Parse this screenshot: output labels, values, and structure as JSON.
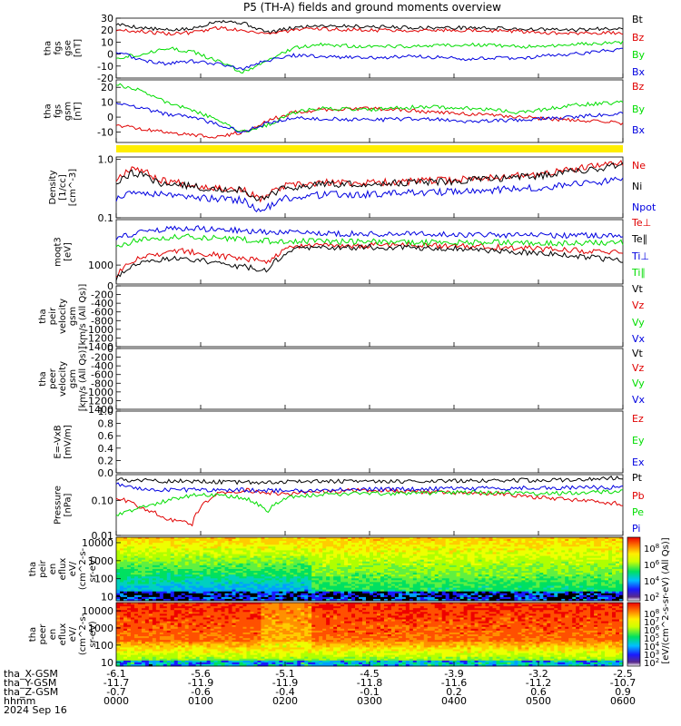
{
  "title": "P5 (TH-A) fields and ground moments overview",
  "colors": {
    "black": "#000000",
    "red": "#e00000",
    "green": "#00dd00",
    "blue": "#0000e0",
    "yellow": "#ffee00"
  },
  "chart_data": [
    {
      "type": "line",
      "panel": "fgs_gse",
      "ylabel": [
        "tha",
        "fgs",
        "gse",
        "[nT]"
      ],
      "ylim": [
        -20,
        30
      ],
      "yticks": [
        "30",
        "20",
        "10",
        "0",
        "-10",
        "-20"
      ],
      "legend": [
        "Bt",
        "Bz",
        "By",
        "Bx"
      ],
      "series": [
        {
          "name": "Bt",
          "color": "black",
          "x": [
            0,
            0.3,
            0.6,
            0.9,
            1.2,
            1.5,
            1.8,
            2.1,
            2.4,
            3,
            3.6,
            4.2,
            4.8,
            5.4,
            6
          ],
          "values": [
            25,
            22,
            20,
            21,
            28,
            26,
            18,
            22,
            24,
            23,
            22,
            22,
            21,
            20,
            22
          ]
        },
        {
          "name": "Bz",
          "color": "red",
          "x": [
            0,
            0.3,
            0.6,
            0.9,
            1.2,
            1.5,
            1.8,
            2.1,
            2.4,
            3,
            3.6,
            4.2,
            4.8,
            5.4,
            6
          ],
          "values": [
            20,
            19,
            17,
            18,
            22,
            20,
            17,
            20,
            21,
            20,
            20,
            20,
            19,
            17,
            18
          ]
        },
        {
          "name": "By",
          "color": "green",
          "x": [
            0,
            0.3,
            0.6,
            0.9,
            1.2,
            1.5,
            1.8,
            2.1,
            2.4,
            3,
            3.6,
            4.2,
            4.8,
            5.4,
            6
          ],
          "values": [
            -3,
            0,
            5,
            2,
            -6,
            -15,
            -5,
            5,
            8,
            6,
            7,
            8,
            6,
            8,
            10
          ]
        },
        {
          "name": "Bx",
          "color": "blue",
          "x": [
            0,
            0.3,
            0.6,
            0.9,
            1.2,
            1.5,
            1.8,
            2.1,
            2.4,
            3,
            3.6,
            4.2,
            4.8,
            5.4,
            6
          ],
          "values": [
            2,
            -5,
            -8,
            -6,
            -8,
            -12,
            -5,
            -1,
            -2,
            -3,
            -2,
            -4,
            -3,
            0,
            4
          ]
        }
      ]
    },
    {
      "type": "line",
      "panel": "fgs_gsm",
      "ylabel": [
        "tha",
        "fgs",
        "gsm",
        "[nT]"
      ],
      "ylim": [
        -17,
        25
      ],
      "yticks": [
        "20",
        "10",
        "0",
        "-10"
      ],
      "legend": [
        "Bz",
        "By",
        "Bx"
      ],
      "series": [
        {
          "name": "Bz",
          "color": "red",
          "x": [
            0,
            0.3,
            0.6,
            0.9,
            1.2,
            1.5,
            1.8,
            2.1,
            2.4,
            3,
            3.6,
            4.2,
            4.8,
            5.4,
            6
          ],
          "values": [
            -5,
            -8,
            -10,
            -12,
            -13,
            -10,
            -2,
            3,
            5,
            6,
            4,
            2,
            0,
            -2,
            -4
          ]
        },
        {
          "name": "By",
          "color": "green",
          "x": [
            0,
            0.3,
            0.6,
            0.9,
            1.2,
            1.5,
            1.8,
            2.1,
            2.4,
            3,
            3.6,
            4.2,
            4.8,
            5.4,
            6
          ],
          "values": [
            22,
            18,
            10,
            5,
            -2,
            -10,
            -5,
            3,
            6,
            5,
            7,
            6,
            3,
            8,
            10
          ]
        },
        {
          "name": "Bx",
          "color": "blue",
          "x": [
            0,
            0.3,
            0.6,
            0.9,
            1.2,
            1.5,
            1.8,
            2.1,
            2.4,
            3,
            3.6,
            4.2,
            4.8,
            5.4,
            6
          ],
          "values": [
            10,
            6,
            2,
            0,
            -5,
            -10,
            -4,
            0,
            -1,
            -2,
            -1,
            -3,
            -2,
            0,
            3
          ]
        }
      ]
    },
    {
      "type": "line",
      "panel": "density",
      "ylabel": [
        "Density",
        "[1/cc]",
        "[cm^-3]"
      ],
      "scale": "log",
      "ylim": [
        0.1,
        1.1
      ],
      "yticks": [
        "1.0",
        "0.1"
      ],
      "legend": [
        "Ne",
        "Ni",
        "Npot"
      ],
      "series": [
        {
          "name": "Ne",
          "color": "red",
          "x": [
            0,
            0.2,
            0.5,
            1,
            1.5,
            1.7,
            2,
            2.5,
            3,
            3.5,
            4,
            4.5,
            5,
            5.5,
            6
          ],
          "values": [
            0.45,
            0.75,
            0.45,
            0.35,
            0.3,
            0.2,
            0.35,
            0.4,
            0.4,
            0.42,
            0.45,
            0.5,
            0.55,
            0.7,
            0.9
          ]
        },
        {
          "name": "Ni",
          "color": "black",
          "x": [
            0,
            0.2,
            0.5,
            1,
            1.5,
            1.7,
            2,
            2.5,
            3,
            3.5,
            4,
            4.5,
            5,
            5.5,
            6
          ],
          "values": [
            0.4,
            0.6,
            0.4,
            0.33,
            0.3,
            0.2,
            0.32,
            0.38,
            0.38,
            0.4,
            0.42,
            0.47,
            0.52,
            0.65,
            0.8
          ]
        },
        {
          "name": "Npot",
          "color": "blue",
          "x": [
            0,
            0.2,
            0.5,
            1,
            1.5,
            1.7,
            2,
            2.5,
            3,
            3.5,
            4,
            4.5,
            5,
            5.5,
            6
          ],
          "values": [
            0.2,
            0.28,
            0.25,
            0.22,
            0.2,
            0.12,
            0.22,
            0.25,
            0.25,
            0.27,
            0.28,
            0.3,
            0.33,
            0.38,
            0.45
          ]
        }
      ]
    },
    {
      "type": "line",
      "panel": "temperature",
      "ylabel": [
        "moqt3",
        "[eV]"
      ],
      "scale": "log",
      "ylim": [
        400,
        9000
      ],
      "yticks": [
        "1000"
      ],
      "legend": [
        "Te⊥",
        "Te∥",
        "Ti⊥",
        "Ti∥"
      ],
      "series": [
        {
          "name": "Te⊥",
          "color": "red",
          "x": [
            0,
            0.3,
            0.8,
            1.3,
            1.8,
            2.1,
            2.5,
            3,
            3.5,
            4,
            4.5,
            5,
            5.5,
            6
          ],
          "values": [
            600,
            1500,
            2000,
            1500,
            1200,
            2500,
            2500,
            2600,
            2600,
            2500,
            2400,
            2200,
            2000,
            1800
          ]
        },
        {
          "name": "Te∥",
          "color": "black",
          "x": [
            0,
            0.3,
            0.8,
            1.3,
            1.8,
            2.1,
            2.5,
            3,
            3.5,
            4,
            4.5,
            5,
            5.5,
            6
          ],
          "values": [
            500,
            1200,
            1400,
            1000,
            800,
            2200,
            2300,
            2400,
            2300,
            2200,
            2000,
            1800,
            1500,
            1200
          ]
        },
        {
          "name": "Ti⊥",
          "color": "blue",
          "x": [
            0,
            0.3,
            0.8,
            1.3,
            1.8,
            2.1,
            2.5,
            3,
            3.5,
            4,
            4.5,
            5,
            5.5,
            6
          ],
          "values": [
            3500,
            5000,
            6000,
            5500,
            5000,
            4800,
            4500,
            4500,
            4500,
            4400,
            4300,
            4200,
            4200,
            4300
          ]
        },
        {
          "name": "Ti∥",
          "color": "green",
          "x": [
            0,
            0.3,
            0.8,
            1.3,
            1.8,
            2.1,
            2.5,
            3,
            3.5,
            4,
            4.5,
            5,
            5.5,
            6
          ],
          "values": [
            2500,
            3500,
            4000,
            3600,
            3200,
            3200,
            3100,
            3100,
            3000,
            3000,
            3000,
            2900,
            2900,
            3000
          ]
        }
      ]
    },
    {
      "type": "line",
      "panel": "peir_velocity",
      "ylabel": [
        "tha",
        "peir",
        "velocity",
        "gsm",
        "[km/s (All Qs)]"
      ],
      "ylim": [
        -1400,
        0
      ],
      "yticks": [
        "0",
        "-200",
        "-400",
        "-600",
        "-800",
        "-1000",
        "-1200",
        "-1400"
      ],
      "legend": [
        "Vt",
        "Vz",
        "Vy",
        "Vx"
      ],
      "series": []
    },
    {
      "type": "line",
      "panel": "peer_velocity",
      "ylabel": [
        "tha",
        "peer",
        "velocity",
        "gsm",
        "[km/s (All Qs)]"
      ],
      "ylim": [
        -1400,
        0
      ],
      "yticks": [
        "0",
        "-200",
        "-400",
        "-600",
        "-800",
        "-1000",
        "-1200",
        "-1400"
      ],
      "legend": [
        "Vt",
        "Vz",
        "Vy",
        "Vx"
      ],
      "series": []
    },
    {
      "type": "line",
      "panel": "efield",
      "ylabel": [
        "E=-VxB",
        "[mV/m]"
      ],
      "ylim": [
        0,
        1.0
      ],
      "yticks": [
        "1.0",
        "0.8",
        "0.6",
        "0.4",
        "0.2",
        "0.0"
      ],
      "legend": [
        "Ez",
        "Ey",
        "Ex"
      ],
      "series": []
    },
    {
      "type": "line",
      "panel": "pressure",
      "ylabel": [
        "Pressure",
        "[nPa]"
      ],
      "scale": "log",
      "ylim": [
        0.01,
        0.55
      ],
      "yticks": [
        "0.10",
        "0.01"
      ],
      "legend": [
        "Pt",
        "Pb",
        "Pe",
        "Pi"
      ],
      "series": [
        {
          "name": "Pt",
          "color": "black",
          "x": [
            0,
            0.5,
            1,
            1.5,
            2,
            2.5,
            3,
            3.5,
            4,
            4.5,
            5,
            5.5,
            6
          ],
          "values": [
            0.4,
            0.36,
            0.35,
            0.33,
            0.35,
            0.36,
            0.35,
            0.36,
            0.37,
            0.38,
            0.38,
            0.4,
            0.45
          ]
        },
        {
          "name": "Pb",
          "color": "red",
          "x": [
            0,
            0.3,
            0.6,
            0.9,
            1.2,
            1.5,
            2,
            2.5,
            3,
            3.5,
            4,
            4.5,
            5,
            5.5,
            6
          ],
          "values": [
            0.12,
            0.06,
            0.03,
            0.02,
            0.15,
            0.2,
            0.15,
            0.18,
            0.2,
            0.18,
            0.17,
            0.16,
            0.12,
            0.1,
            0.08
          ]
        },
        {
          "name": "Pe",
          "color": "green",
          "x": [
            0,
            0.3,
            0.6,
            1,
            1.5,
            1.8,
            2,
            2.5,
            3,
            3.5,
            4,
            4.5,
            5,
            5.5,
            6
          ],
          "values": [
            0.04,
            0.06,
            0.1,
            0.15,
            0.12,
            0.05,
            0.12,
            0.15,
            0.16,
            0.16,
            0.17,
            0.17,
            0.16,
            0.17,
            0.18
          ]
        },
        {
          "name": "Pi",
          "color": "blue",
          "x": [
            0,
            0.3,
            0.6,
            1,
            1.5,
            2,
            2.5,
            3,
            3.5,
            4,
            4.5,
            5,
            5.5,
            6
          ],
          "values": [
            0.3,
            0.22,
            0.2,
            0.2,
            0.2,
            0.19,
            0.2,
            0.21,
            0.21,
            0.22,
            0.22,
            0.23,
            0.23,
            0.24
          ]
        }
      ]
    },
    {
      "type": "heatmap",
      "panel": "peir_en_eflux",
      "ylabel": [
        "tha",
        "peir",
        "en",
        "eflux",
        "eV/",
        "(cm^2-s-",
        "sr-eV)"
      ],
      "scale": "log",
      "ylim": [
        6,
        20000
      ],
      "yticks": [
        "10000",
        "1000",
        "100",
        "10"
      ],
      "colorbar_label": "[eV/(cm^2-s-sr-eV) (All Qs)]",
      "colorbar_ticks": [
        "10^8",
        "10^6",
        "10^4",
        "10^2"
      ]
    },
    {
      "type": "heatmap",
      "panel": "peer_en_eflux",
      "ylabel": [
        "tha",
        "peer",
        "en",
        "eflux",
        "eV/",
        "(cm^2-s-",
        "sr-eV)"
      ],
      "scale": "log",
      "ylim": [
        6,
        30000
      ],
      "yticks": [
        "10000",
        "1000",
        "100",
        "10"
      ],
      "colorbar_label": "[eV/(cm^2-s-sr-eV) (All Qs)]",
      "colorbar_ticks": [
        "10^8",
        "10^7",
        "10^6",
        "10^5",
        "10^4",
        "10^3",
        "10^2"
      ]
    }
  ],
  "xaxis": {
    "xlim": [
      0,
      6
    ],
    "rows": [
      {
        "label": "tha_X-GSM",
        "values": [
          "-6.1",
          "-5.6",
          "-5.1",
          "-4.5",
          "-3.9",
          "-3.2",
          "-2.5"
        ]
      },
      {
        "label": "tha_Y-GSM",
        "values": [
          "-11.7",
          "-11.9",
          "-11.9",
          "-11.8",
          "-11.6",
          "-11.2",
          "-10.7"
        ]
      },
      {
        "label": "tha_Z-GSM",
        "values": [
          "-0.7",
          "-0.6",
          "-0.4",
          "-0.1",
          "0.2",
          "0.6",
          "0.9"
        ]
      },
      {
        "label": "hhmm",
        "values": [
          "0000",
          "0100",
          "0200",
          "0300",
          "0400",
          "0500",
          "0600"
        ]
      }
    ],
    "date": "2024 Sep 16"
  }
}
